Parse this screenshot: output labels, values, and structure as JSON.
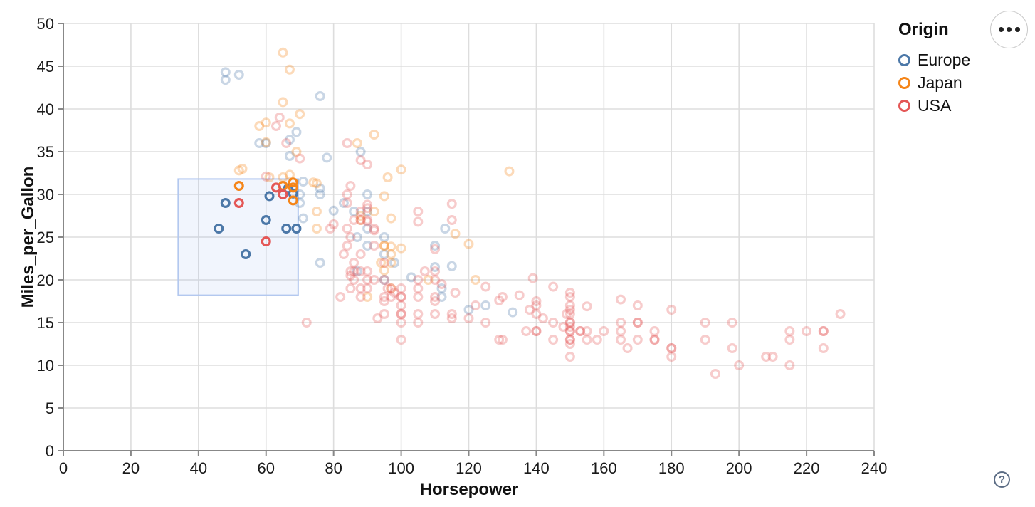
{
  "chart_data": {
    "type": "scatter",
    "title": "",
    "xlabel": "Horsepower",
    "ylabel": "Miles_per_Gallon",
    "xlim": [
      0,
      240
    ],
    "ylim": [
      0,
      50
    ],
    "x_ticks": [
      0,
      20,
      40,
      60,
      80,
      100,
      120,
      140,
      160,
      180,
      200,
      220,
      240
    ],
    "y_ticks": [
      0,
      5,
      10,
      15,
      20,
      25,
      30,
      35,
      40,
      45,
      50
    ],
    "grid": true,
    "legend": {
      "title": "Origin",
      "position": "top-right",
      "entries": [
        {
          "key": "E",
          "label": "Europe",
          "color": "#4c78a8"
        },
        {
          "key": "J",
          "label": "Japan",
          "color": "#f58518"
        },
        {
          "key": "U",
          "label": "USA",
          "color": "#e45756"
        }
      ]
    },
    "brush": {
      "x": [
        34,
        69.5
      ],
      "y": [
        18.2,
        31.8
      ]
    },
    "selected_opacity": 1,
    "unselected_opacity": 0.3,
    "points": [
      [
        46,
        26,
        "E"
      ],
      [
        48,
        29,
        "E"
      ],
      [
        54,
        23,
        "E"
      ],
      [
        60,
        27,
        "E"
      ],
      [
        61,
        29.8,
        "E"
      ],
      [
        66.5,
        30.7,
        "E"
      ],
      [
        68,
        30.1,
        "E"
      ],
      [
        66,
        26,
        "E"
      ],
      [
        69,
        26,
        "E"
      ],
      [
        52,
        31,
        "J"
      ],
      [
        65,
        31,
        "J"
      ],
      [
        68,
        31.4,
        "J"
      ],
      [
        68,
        30.8,
        "J"
      ],
      [
        68,
        29.3,
        "J"
      ],
      [
        52,
        29,
        "U"
      ],
      [
        63,
        30.8,
        "U"
      ],
      [
        65,
        30,
        "U"
      ],
      [
        60,
        24.5,
        "U"
      ],
      [
        48,
        44.3,
        "E"
      ],
      [
        48,
        43.4,
        "E"
      ],
      [
        52,
        44,
        "E"
      ],
      [
        76,
        41.5,
        "E"
      ],
      [
        58,
        36,
        "E"
      ],
      [
        60,
        36,
        "E"
      ],
      [
        67,
        36.4,
        "E"
      ],
      [
        69,
        37.3,
        "E"
      ],
      [
        67,
        34.5,
        "E"
      ],
      [
        71,
        31.5,
        "E"
      ],
      [
        70,
        29,
        "E"
      ],
      [
        70,
        30,
        "E"
      ],
      [
        71,
        27.2,
        "E"
      ],
      [
        76,
        30,
        "E"
      ],
      [
        76,
        30.7,
        "E"
      ],
      [
        78,
        34.3,
        "E"
      ],
      [
        80,
        28.1,
        "E"
      ],
      [
        83,
        29,
        "E"
      ],
      [
        86,
        28,
        "E"
      ],
      [
        87,
        25,
        "E"
      ],
      [
        87,
        21,
        "E"
      ],
      [
        88,
        35,
        "E"
      ],
      [
        90,
        30,
        "E"
      ],
      [
        90,
        28,
        "E"
      ],
      [
        90,
        26,
        "E"
      ],
      [
        90,
        24,
        "E"
      ],
      [
        95,
        25,
        "E"
      ],
      [
        95,
        23,
        "E"
      ],
      [
        95,
        20,
        "E"
      ],
      [
        98,
        22,
        "E"
      ],
      [
        103,
        20.3,
        "E"
      ],
      [
        110,
        24,
        "E"
      ],
      [
        110,
        21.5,
        "E"
      ],
      [
        112,
        18,
        "E"
      ],
      [
        112,
        19,
        "E"
      ],
      [
        113,
        26,
        "E"
      ],
      [
        115,
        21.6,
        "E"
      ],
      [
        120,
        16.5,
        "E"
      ],
      [
        125,
        17,
        "E"
      ],
      [
        133,
        16.2,
        "E"
      ],
      [
        76,
        22,
        "E"
      ],
      [
        52,
        32.8,
        "J"
      ],
      [
        53,
        33,
        "J"
      ],
      [
        60,
        36.1,
        "J"
      ],
      [
        61,
        32,
        "J"
      ],
      [
        65,
        32,
        "J"
      ],
      [
        65,
        46.6,
        "J"
      ],
      [
        67,
        44.6,
        "J"
      ],
      [
        69,
        35,
        "J"
      ],
      [
        70,
        39.4,
        "J"
      ],
      [
        58,
        38,
        "J"
      ],
      [
        60,
        38.4,
        "J"
      ],
      [
        65,
        40.8,
        "J"
      ],
      [
        67,
        38.3,
        "J"
      ],
      [
        67,
        32.3,
        "J"
      ],
      [
        92,
        37,
        "J"
      ],
      [
        87,
        36,
        "J"
      ],
      [
        88,
        27,
        "J"
      ],
      [
        88,
        27.5,
        "J"
      ],
      [
        92,
        28,
        "J"
      ],
      [
        95,
        24,
        "J"
      ],
      [
        95,
        24,
        "J"
      ],
      [
        97,
        23,
        "J"
      ],
      [
        94,
        22,
        "J"
      ],
      [
        90,
        18,
        "J"
      ],
      [
        97,
        19,
        "J"
      ],
      [
        97,
        22,
        "J"
      ],
      [
        97,
        27.2,
        "J"
      ],
      [
        95,
        29.8,
        "J"
      ],
      [
        96,
        32,
        "J"
      ],
      [
        95,
        21.1,
        "J"
      ],
      [
        97,
        23.9,
        "J"
      ],
      [
        100,
        23.7,
        "J"
      ],
      [
        75,
        28,
        "J"
      ],
      [
        75,
        26,
        "J"
      ],
      [
        75,
        31.3,
        "J"
      ],
      [
        74,
        31.4,
        "J"
      ],
      [
        100,
        32.9,
        "J"
      ],
      [
        108,
        20,
        "J"
      ],
      [
        116,
        25.4,
        "J"
      ],
      [
        120,
        24.2,
        "J"
      ],
      [
        122,
        20,
        "J"
      ],
      [
        132,
        32.7,
        "J"
      ],
      [
        60,
        32.1,
        "U"
      ],
      [
        63,
        38,
        "U"
      ],
      [
        64,
        39,
        "U"
      ],
      [
        66,
        36,
        "U"
      ],
      [
        70,
        34.2,
        "U"
      ],
      [
        72,
        15,
        "U"
      ],
      [
        79,
        26,
        "U"
      ],
      [
        80,
        26.5,
        "U"
      ],
      [
        83,
        23,
        "U"
      ],
      [
        84,
        24,
        "U"
      ],
      [
        84,
        26,
        "U"
      ],
      [
        84,
        29,
        "U"
      ],
      [
        84,
        30,
        "U"
      ],
      [
        84,
        36,
        "U"
      ],
      [
        85,
        25,
        "U"
      ],
      [
        85,
        31,
        "U"
      ],
      [
        86,
        27,
        "U"
      ],
      [
        88,
        23,
        "U"
      ],
      [
        88,
        27,
        "U"
      ],
      [
        88,
        28,
        "U"
      ],
      [
        88,
        34,
        "U"
      ],
      [
        90,
        26.8,
        "U"
      ],
      [
        90,
        27,
        "U"
      ],
      [
        90,
        28.8,
        "U"
      ],
      [
        90,
        28.4,
        "U"
      ],
      [
        90,
        33.5,
        "U"
      ],
      [
        92,
        24,
        "U"
      ],
      [
        92,
        25.8,
        "U"
      ],
      [
        92,
        26,
        "U"
      ],
      [
        110,
        23.6,
        "U"
      ],
      [
        105,
        26.8,
        "U"
      ],
      [
        105,
        28,
        "U"
      ],
      [
        115,
        28.9,
        "U"
      ],
      [
        115,
        27,
        "U"
      ],
      [
        82,
        18,
        "U"
      ],
      [
        85,
        21,
        "U"
      ],
      [
        85,
        19,
        "U"
      ],
      [
        85,
        20.5,
        "U"
      ],
      [
        86,
        20,
        "U"
      ],
      [
        86,
        21,
        "U"
      ],
      [
        86,
        22,
        "U"
      ],
      [
        88,
        21,
        "U"
      ],
      [
        88,
        18,
        "U"
      ],
      [
        88,
        19,
        "U"
      ],
      [
        90,
        20,
        "U"
      ],
      [
        90,
        21,
        "U"
      ],
      [
        90,
        19,
        "U"
      ],
      [
        92,
        20,
        "U"
      ],
      [
        93,
        15.5,
        "U"
      ],
      [
        95,
        22,
        "U"
      ],
      [
        95,
        20,
        "U"
      ],
      [
        95,
        18,
        "U"
      ],
      [
        95,
        17.5,
        "U"
      ],
      [
        95,
        16,
        "U"
      ],
      [
        96,
        19,
        "U"
      ],
      [
        97,
        18,
        "U"
      ],
      [
        97,
        19,
        "U"
      ],
      [
        98,
        18.5,
        "U"
      ],
      [
        100,
        19,
        "U"
      ],
      [
        100,
        18,
        "U"
      ],
      [
        100,
        18,
        "U"
      ],
      [
        100,
        17,
        "U"
      ],
      [
        100,
        16,
        "U"
      ],
      [
        100,
        16,
        "U"
      ],
      [
        100,
        15,
        "U"
      ],
      [
        100,
        13,
        "U"
      ],
      [
        105,
        20,
        "U"
      ],
      [
        105,
        19,
        "U"
      ],
      [
        105,
        18,
        "U"
      ],
      [
        105,
        16,
        "U"
      ],
      [
        105,
        15,
        "U"
      ],
      [
        107,
        21,
        "U"
      ],
      [
        110,
        21,
        "U"
      ],
      [
        110,
        20,
        "U"
      ],
      [
        110,
        18,
        "U"
      ],
      [
        110,
        17.5,
        "U"
      ],
      [
        110,
        16,
        "U"
      ],
      [
        112,
        19.5,
        "U"
      ],
      [
        115,
        16,
        "U"
      ],
      [
        115,
        15.5,
        "U"
      ],
      [
        116,
        18.5,
        "U"
      ],
      [
        120,
        15.5,
        "U"
      ],
      [
        122,
        17,
        "U"
      ],
      [
        125,
        15,
        "U"
      ],
      [
        125,
        19.2,
        "U"
      ],
      [
        129,
        17.6,
        "U"
      ],
      [
        129,
        13,
        "U"
      ],
      [
        130,
        18,
        "U"
      ],
      [
        130,
        13,
        "U"
      ],
      [
        135,
        18.2,
        "U"
      ],
      [
        137,
        14,
        "U"
      ],
      [
        138,
        16.5,
        "U"
      ],
      [
        139,
        20.2,
        "U"
      ],
      [
        140,
        17,
        "U"
      ],
      [
        140,
        16,
        "U"
      ],
      [
        140,
        14,
        "U"
      ],
      [
        140,
        14,
        "U"
      ],
      [
        140,
        17.5,
        "U"
      ],
      [
        142,
        15.5,
        "U"
      ],
      [
        145,
        15,
        "U"
      ],
      [
        145,
        13,
        "U"
      ],
      [
        145,
        19.2,
        "U"
      ],
      [
        148,
        14.5,
        "U"
      ],
      [
        149,
        16,
        "U"
      ],
      [
        150,
        18.5,
        "U"
      ],
      [
        150,
        18,
        "U"
      ],
      [
        150,
        17,
        "U"
      ],
      [
        150,
        16.5,
        "U"
      ],
      [
        150,
        16,
        "U"
      ],
      [
        150,
        15,
        "U"
      ],
      [
        150,
        15,
        "U"
      ],
      [
        150,
        14.5,
        "U"
      ],
      [
        150,
        14,
        "U"
      ],
      [
        150,
        14,
        "U"
      ],
      [
        150,
        13,
        "U"
      ],
      [
        150,
        13,
        "U"
      ],
      [
        150,
        12.5,
        "U"
      ],
      [
        150,
        11,
        "U"
      ],
      [
        153,
        14,
        "U"
      ],
      [
        153,
        14,
        "U"
      ],
      [
        155,
        13,
        "U"
      ],
      [
        155,
        14,
        "U"
      ],
      [
        155,
        16.9,
        "U"
      ],
      [
        158,
        13,
        "U"
      ],
      [
        160,
        14,
        "U"
      ],
      [
        165,
        15,
        "U"
      ],
      [
        165,
        14,
        "U"
      ],
      [
        165,
        13,
        "U"
      ],
      [
        165,
        17.7,
        "U"
      ],
      [
        167,
        12,
        "U"
      ],
      [
        170,
        15,
        "U"
      ],
      [
        170,
        15,
        "U"
      ],
      [
        170,
        13,
        "U"
      ],
      [
        170,
        17,
        "U"
      ],
      [
        175,
        14,
        "U"
      ],
      [
        175,
        13,
        "U"
      ],
      [
        175,
        13,
        "U"
      ],
      [
        180,
        12,
        "U"
      ],
      [
        180,
        12,
        "U"
      ],
      [
        180,
        11,
        "U"
      ],
      [
        180,
        16.5,
        "U"
      ],
      [
        190,
        15,
        "U"
      ],
      [
        190,
        13,
        "U"
      ],
      [
        193,
        9,
        "U"
      ],
      [
        198,
        15,
        "U"
      ],
      [
        198,
        12,
        "U"
      ],
      [
        200,
        10,
        "U"
      ],
      [
        208,
        11,
        "U"
      ],
      [
        210,
        11,
        "U"
      ],
      [
        215,
        10,
        "U"
      ],
      [
        215,
        14,
        "U"
      ],
      [
        215,
        13,
        "U"
      ],
      [
        220,
        14,
        "U"
      ],
      [
        225,
        14,
        "U"
      ],
      [
        225,
        14,
        "U"
      ],
      [
        225,
        12,
        "U"
      ],
      [
        230,
        16,
        "U"
      ]
    ]
  },
  "controls": {
    "menu_button_icon": "ellipsis-horizontal",
    "help_button_label": "?"
  }
}
